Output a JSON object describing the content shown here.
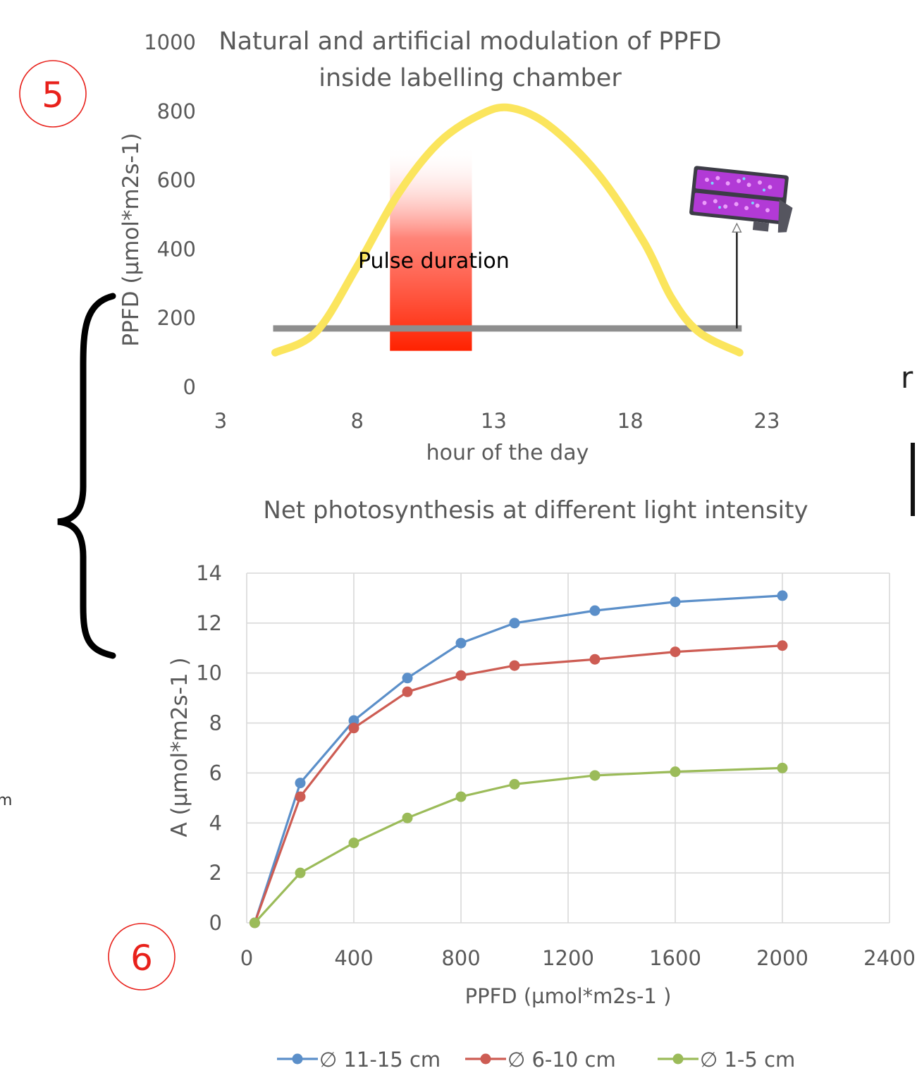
{
  "annotations": {
    "badge_top": "5",
    "badge_bottom": "6",
    "edge_letter_right": "r",
    "edge_letter_left": "m",
    "pulse_label": "Pulse duration",
    "brace_icon": "curly-brace-icon",
    "lamp_icon": "led-grow-light-icon",
    "badge_color": "#e8211b"
  },
  "chart_data": [
    {
      "type": "line",
      "title_lines": [
        "Natural and artificial modulation of PPFD",
        "inside labelling chamber"
      ],
      "xlabel": "hour of the day",
      "ylabel": "PPFD (µmol*m2s-1)",
      "xlim": [
        3,
        23
      ],
      "ylim": [
        0,
        1000
      ],
      "x_ticks": [
        "3",
        "8",
        "13",
        "18",
        "23"
      ],
      "y_ticks": [
        "0",
        "200",
        "400",
        "600",
        "800",
        "1000"
      ],
      "grid": false,
      "series": [
        {
          "color": "#fbe55d",
          "points": [
            [
              5,
              100
            ],
            [
              6.5,
              160
            ],
            [
              8,
              350
            ],
            [
              9.5,
              560
            ],
            [
              11,
              710
            ],
            [
              12.5,
              790
            ],
            [
              13.6,
              810
            ],
            [
              15,
              760
            ],
            [
              16.8,
              620
            ],
            [
              18.5,
              420
            ],
            [
              19.5,
              260
            ],
            [
              20.5,
              160
            ],
            [
              22,
              100
            ]
          ]
        },
        {
          "color": "#8e8e8e",
          "points": [
            [
              5,
              170
            ],
            [
              22,
              170
            ]
          ]
        }
      ],
      "pulse_band": {
        "x": [
          9.2,
          12.2
        ],
        "y": [
          105,
          700
        ],
        "color": "#ff2200"
      },
      "lamp_arrow": {
        "x": 21.9,
        "y": [
          170,
          470
        ]
      }
    },
    {
      "type": "line",
      "title": "Net photosynthesis at different light intensity",
      "xlabel": "PPFD (µmol*m2s-1 )",
      "ylabel": "A (µmol*m2s-1 )",
      "xlim": [
        0,
        2400
      ],
      "ylim": [
        0,
        14
      ],
      "x_ticks": [
        "0",
        "400",
        "800",
        "1200",
        "1600",
        "2000",
        "2400"
      ],
      "y_ticks": [
        "0",
        "2",
        "4",
        "6",
        "8",
        "10",
        "12",
        "14"
      ],
      "grid": true,
      "legend": "bottom",
      "x": [
        30,
        200,
        400,
        600,
        800,
        1000,
        1300,
        1600,
        2000
      ],
      "series": [
        {
          "name": "∅ 11-15 cm",
          "color": "#5b8fc9",
          "values": [
            0,
            5.6,
            8.1,
            9.8,
            11.2,
            12.0,
            12.5,
            12.85,
            13.1
          ]
        },
        {
          "name": "∅ 6-10 cm",
          "color": "#cd5c53",
          "values": [
            0,
            5.05,
            7.8,
            9.25,
            9.9,
            10.3,
            10.55,
            10.85,
            11.1
          ]
        },
        {
          "name": "∅ 1-5 cm",
          "color": "#9bbb59",
          "values": [
            0,
            2.0,
            3.2,
            4.2,
            5.05,
            5.55,
            5.9,
            6.05,
            6.2
          ]
        }
      ]
    }
  ]
}
